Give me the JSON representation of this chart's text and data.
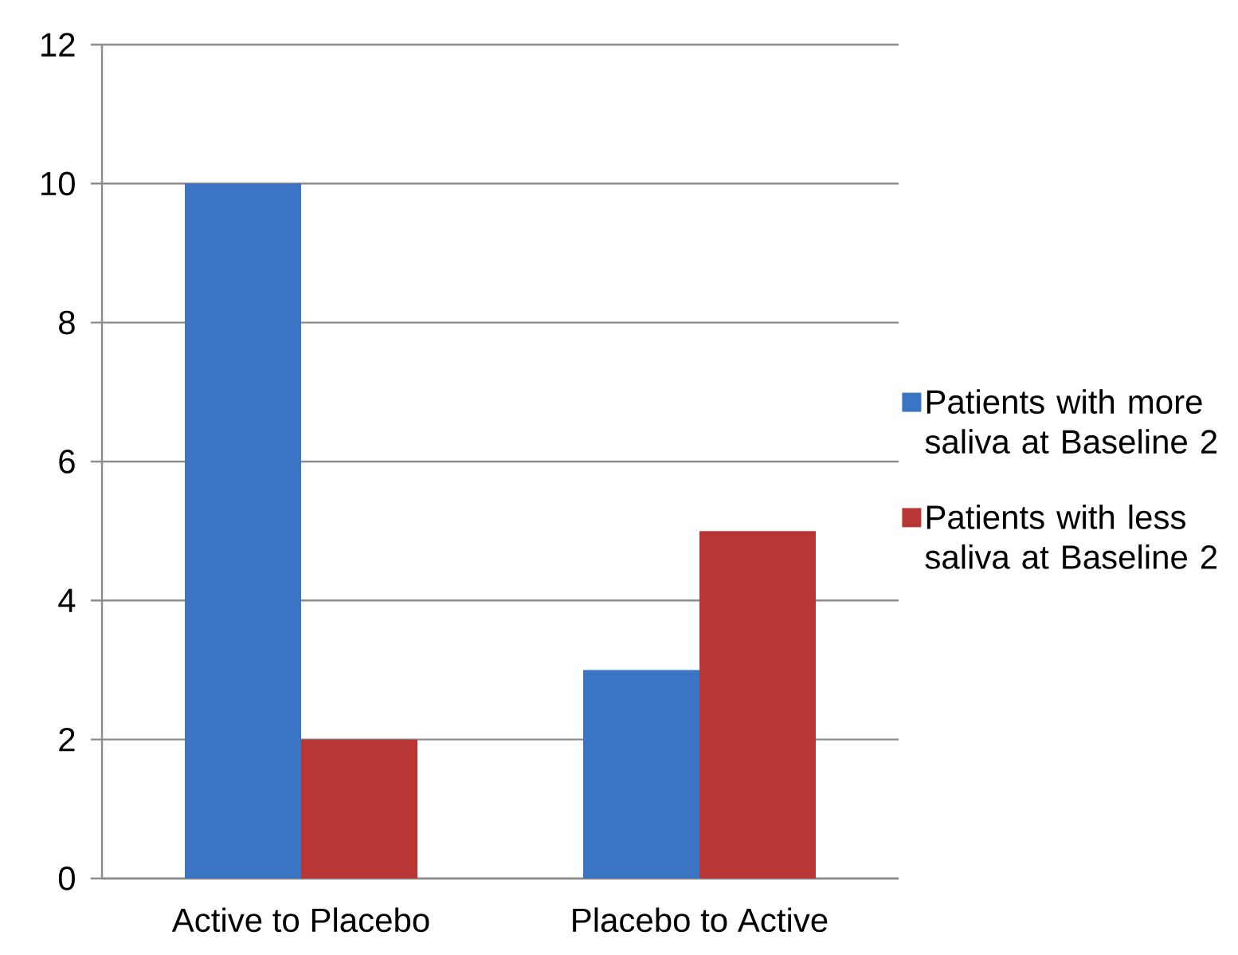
{
  "chart_data": {
    "type": "bar",
    "categories": [
      "Active to Placebo",
      "Placebo to Active"
    ],
    "series": [
      {
        "name": "Patients with more saliva at Baseline 2",
        "color": "#3a74c2",
        "values": [
          10,
          3
        ]
      },
      {
        "name": "Patients with less saliva at Baseline 2",
        "color": "#b83634",
        "values": [
          2,
          5
        ]
      }
    ],
    "ylim": [
      0,
      12
    ],
    "yticks": [
      0,
      2,
      4,
      6,
      8,
      10,
      12
    ],
    "grid": "y",
    "legend": "right"
  }
}
